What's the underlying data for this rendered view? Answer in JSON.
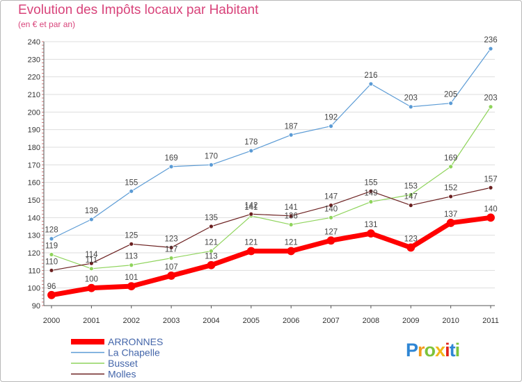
{
  "title": "Evolution des Impôts locaux par Habitant",
  "subtitle": "(en € et par an)",
  "logo": [
    "P",
    "r",
    "o",
    "x",
    "i",
    "t",
    "i"
  ],
  "logo_colors": [
    "#2f86d4",
    "#f29a1f",
    "#7cc33b",
    "#f2b71a",
    "#e2231a",
    "#2f86d4",
    "#7cc33b"
  ],
  "chart_data": {
    "type": "line",
    "title": "Evolution des Impôts locaux par Habitant",
    "subtitle": "(en € et par an)",
    "xlabel": "",
    "ylabel": "",
    "categories": [
      "2000",
      "2001",
      "2002",
      "2003",
      "2004",
      "2005",
      "2006",
      "2007",
      "2008",
      "2009",
      "2010",
      "2011"
    ],
    "ylim": [
      90,
      240
    ],
    "yticks": [
      90,
      100,
      110,
      120,
      130,
      140,
      150,
      160,
      170,
      180,
      190,
      200,
      210,
      220,
      230,
      240
    ],
    "legend_position": "bottom-left",
    "series": [
      {
        "name": "La Chapelle",
        "color": "#5b9bd5",
        "width": 1.2,
        "values": [
          128,
          139,
          155,
          169,
          170,
          178,
          187,
          192,
          216,
          203,
          205,
          236
        ],
        "labels": [
          "128",
          "139",
          "155",
          "169",
          "170",
          "178",
          "187",
          "192",
          "216",
          "203",
          "205",
          "236"
        ]
      },
      {
        "name": "Busset",
        "color": "#8fd45c",
        "width": 1.2,
        "values": [
          119,
          111,
          113,
          117,
          121,
          141,
          136,
          140,
          149,
          153,
          169,
          203
        ],
        "labels": [
          "119",
          "111",
          "113",
          "117",
          "121",
          "141",
          "136",
          "140",
          "149",
          "153",
          "169",
          "203"
        ]
      },
      {
        "name": "Molles",
        "color": "#6b2020",
        "width": 1.2,
        "values": [
          110,
          114,
          125,
          123,
          135,
          142,
          141,
          147,
          155,
          147,
          152,
          157
        ],
        "labels": [
          "110",
          "114",
          "125",
          "123",
          "135",
          "142",
          "141",
          "147",
          "155",
          "147",
          "152",
          "157"
        ]
      },
      {
        "name": "ARRONNES",
        "color": "#ff0000",
        "width": 7,
        "values": [
          96,
          100,
          101,
          107,
          113,
          121,
          121,
          127,
          131,
          123,
          137,
          140
        ],
        "labels": [
          "96",
          "100",
          "101",
          "107",
          "113",
          "121",
          "121",
          "127",
          "131",
          "123",
          "137",
          "140"
        ]
      }
    ],
    "legend": [
      {
        "name": "ARRONNES",
        "color": "#ff0000"
      },
      {
        "name": "La Chapelle",
        "color": "#5b9bd5"
      },
      {
        "name": "Busset",
        "color": "#8fd45c"
      },
      {
        "name": "Molles",
        "color": "#6b2020"
      }
    ]
  }
}
